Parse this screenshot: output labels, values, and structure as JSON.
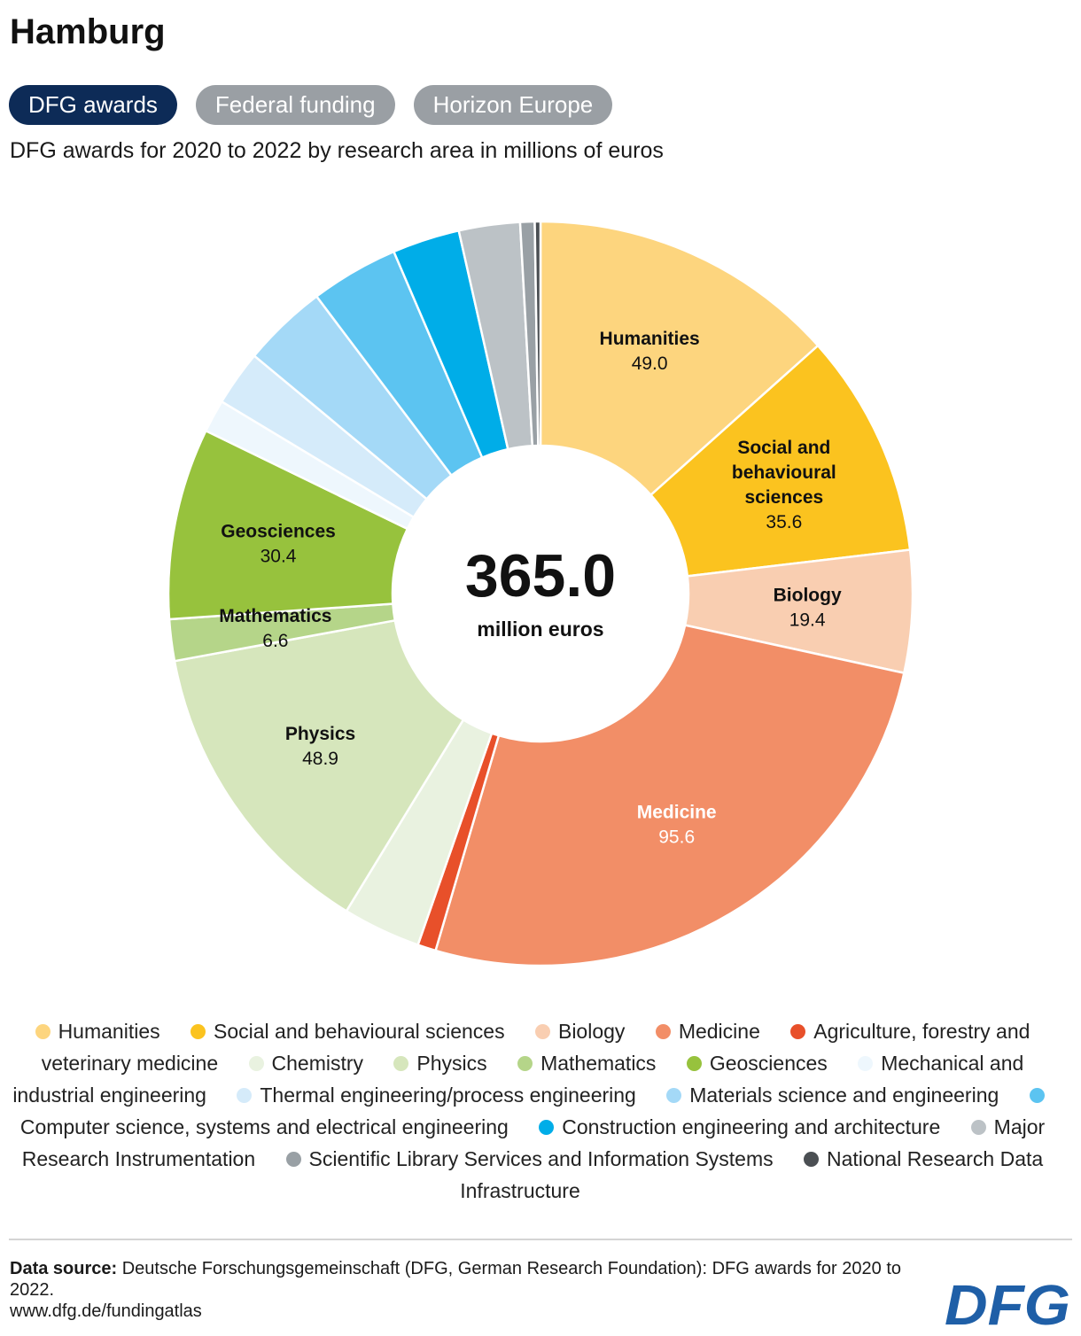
{
  "title": "Hamburg",
  "tabs": [
    {
      "label": "DFG awards",
      "active": true
    },
    {
      "label": "Federal funding",
      "active": false
    },
    {
      "label": "Horizon Europe",
      "active": false
    }
  ],
  "subtitle": "DFG awards for 2020 to 2022 by research area in millions of euros",
  "center": {
    "total": "365.0",
    "unit": "million euros"
  },
  "chart_data": {
    "type": "pie",
    "donut": true,
    "total": 365.0,
    "slices": [
      {
        "name": "Humanities",
        "value": 49.0,
        "color": "#fdd57e",
        "label": "Humanities",
        "value_label": "49.0",
        "text_color": "#111111"
      },
      {
        "name": "Social and behavioural sciences",
        "value": 35.6,
        "color": "#fbc31f",
        "label": "Social and behavioural sciences",
        "value_label": "35.6",
        "text_color": "#111111"
      },
      {
        "name": "Biology",
        "value": 19.4,
        "color": "#f9ceb1",
        "label": "Biology",
        "value_label": "19.4",
        "text_color": "#111111"
      },
      {
        "name": "Medicine",
        "value": 95.6,
        "color": "#f28e67",
        "label": "Medicine",
        "value_label": "95.6",
        "text_color": "#ffffff"
      },
      {
        "name": "Agriculture, forestry and veterinary medicine",
        "value": 2.9,
        "color": "#e8502a"
      },
      {
        "name": "Chemistry",
        "value": 12.4,
        "color": "#e9f2e0"
      },
      {
        "name": "Physics",
        "value": 48.9,
        "color": "#d6e6bc",
        "label": "Physics",
        "value_label": "48.9",
        "text_color": "#111111"
      },
      {
        "name": "Mathematics",
        "value": 6.6,
        "color": "#b5d589",
        "label": "Mathematics",
        "value_label": "6.6",
        "text_color": "#111111"
      },
      {
        "name": "Geosciences",
        "value": 30.4,
        "color": "#97c23d",
        "label": "Geosciences",
        "value_label": "30.4",
        "text_color": "#111111"
      },
      {
        "name": "Mechanical and industrial engineering",
        "value": 5.2,
        "color": "#eef7fd"
      },
      {
        "name": "Thermal engineering/process engineering",
        "value": 8.8,
        "color": "#d5ebfa"
      },
      {
        "name": "Materials science and engineering",
        "value": 13.5,
        "color": "#a4d9f7"
      },
      {
        "name": "Computer science, systems and electrical engineering",
        "value": 14.0,
        "color": "#5cc4f1"
      },
      {
        "name": "Construction engineering and architecture",
        "value": 10.7,
        "color": "#00ade8"
      },
      {
        "name": "Major Research Instrumentation",
        "value": 9.7,
        "color": "#bcc2c6"
      },
      {
        "name": "Scientific Library Services and Information Systems",
        "value": 2.3,
        "color": "#99a0a5"
      },
      {
        "name": "National Research Data Infrastructure",
        "value": 0.9,
        "color": "#4b4f53"
      }
    ]
  },
  "source": {
    "label": "Data source:",
    "text": "Deutsche Forschungsgemeinschaft (DFG, German Research Foundation): DFG awards for 2020 to 2022.",
    "url": "www.dfg.de/fundingatlas"
  },
  "logo": {
    "text": "DFG",
    "color": "#1f5fa7"
  }
}
